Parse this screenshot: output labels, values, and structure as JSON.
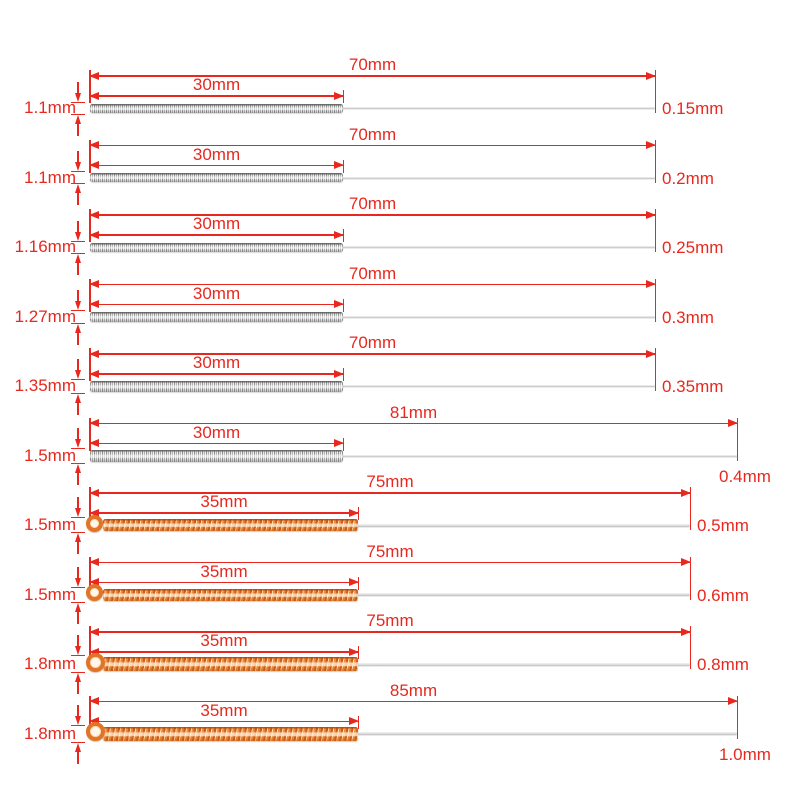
{
  "diagram": {
    "description": "Nozzle cleaning needle drill bits size chart",
    "accent_color": "#e8281e",
    "steel_coil_color": "#c0c0c0",
    "copper_coil_color": "#e07428",
    "rows": [
      {
        "handle_diameter_label": "1.1mm",
        "handle_diameter_mm": 1.1,
        "brush_length_label": "30mm",
        "brush_length_mm": 30,
        "total_length_label": "70mm",
        "total_length_mm": 70,
        "tip_diameter_label": "0.15mm",
        "tip_diameter_mm": 0.15,
        "coil_material": "steel"
      },
      {
        "handle_diameter_label": "1.1mm",
        "handle_diameter_mm": 1.1,
        "brush_length_label": "30mm",
        "brush_length_mm": 30,
        "total_length_label": "70mm",
        "total_length_mm": 70,
        "tip_diameter_label": "0.2mm",
        "tip_diameter_mm": 0.2,
        "coil_material": "steel"
      },
      {
        "handle_diameter_label": "1.16mm",
        "handle_diameter_mm": 1.16,
        "brush_length_label": "30mm",
        "brush_length_mm": 30,
        "total_length_label": "70mm",
        "total_length_mm": 70,
        "tip_diameter_label": "0.25mm",
        "tip_diameter_mm": 0.25,
        "coil_material": "steel"
      },
      {
        "handle_diameter_label": "1.27mm",
        "handle_diameter_mm": 1.27,
        "brush_length_label": "30mm",
        "brush_length_mm": 30,
        "total_length_label": "70mm",
        "total_length_mm": 70,
        "tip_diameter_label": "0.3mm",
        "tip_diameter_mm": 0.3,
        "coil_material": "steel"
      },
      {
        "handle_diameter_label": "1.35mm",
        "handle_diameter_mm": 1.35,
        "brush_length_label": "30mm",
        "brush_length_mm": 30,
        "total_length_label": "70mm",
        "total_length_mm": 70,
        "tip_diameter_label": "0.35mm",
        "tip_diameter_mm": 0.35,
        "coil_material": "steel"
      },
      {
        "handle_diameter_label": "1.5mm",
        "handle_diameter_mm": 1.5,
        "brush_length_label": "30mm",
        "brush_length_mm": 30,
        "total_length_label": "81mm",
        "total_length_mm": 81,
        "tip_diameter_label": "0.4mm",
        "tip_diameter_mm": 0.4,
        "coil_material": "steel"
      },
      {
        "handle_diameter_label": "1.5mm",
        "handle_diameter_mm": 1.5,
        "brush_length_label": "35mm",
        "brush_length_mm": 35,
        "total_length_label": "75mm",
        "total_length_mm": 75,
        "tip_diameter_label": "0.5mm",
        "tip_diameter_mm": 0.5,
        "coil_material": "copper"
      },
      {
        "handle_diameter_label": "1.5mm",
        "handle_diameter_mm": 1.5,
        "brush_length_label": "35mm",
        "brush_length_mm": 35,
        "total_length_label": "75mm",
        "total_length_mm": 75,
        "tip_diameter_label": "0.6mm",
        "tip_diameter_mm": 0.6,
        "coil_material": "copper"
      },
      {
        "handle_diameter_label": "1.8mm",
        "handle_diameter_mm": 1.8,
        "brush_length_label": "35mm",
        "brush_length_mm": 35,
        "total_length_label": "75mm",
        "total_length_mm": 75,
        "tip_diameter_label": "0.8mm",
        "tip_diameter_mm": 0.8,
        "coil_material": "copper"
      },
      {
        "handle_diameter_label": "1.8mm",
        "handle_diameter_mm": 1.8,
        "brush_length_label": "35mm",
        "brush_length_mm": 35,
        "total_length_label": "85mm",
        "total_length_mm": 85,
        "tip_diameter_label": "1.0mm",
        "tip_diameter_mm": 1.0,
        "coil_material": "copper"
      }
    ]
  }
}
